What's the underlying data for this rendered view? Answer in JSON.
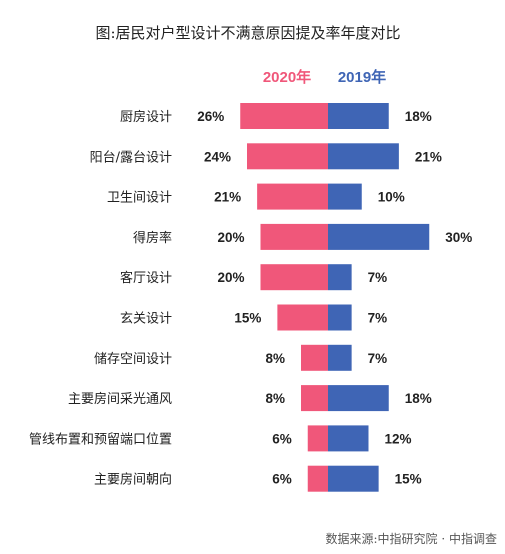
{
  "chart_data": {
    "type": "bar",
    "title": "图:居民对户型设计不满意原因提及率年度对比",
    "categories": [
      "厨房设计",
      "阳台/露台设计",
      "卫生间设计",
      "得房率",
      "客厅设计",
      "玄关设计",
      "储存空间设计",
      "主要房间采光通风",
      "管线布置和预留端口位置",
      "主要房间朝向"
    ],
    "series": [
      {
        "name": "2020年",
        "color": "#f0577a",
        "values": [
          26,
          24,
          21,
          20,
          20,
          15,
          8,
          8,
          6,
          6
        ],
        "labels": [
          "26%",
          "24%",
          "21%",
          "20%",
          "20%",
          "15%",
          "8%",
          "8%",
          "6%",
          "6%"
        ]
      },
      {
        "name": "2019年",
        "color": "#3f65b5",
        "values": [
          18,
          21,
          10,
          30,
          7,
          7,
          7,
          18,
          12,
          15
        ],
        "labels": [
          "18%",
          "21%",
          "10%",
          "30%",
          "7%",
          "7%",
          "7%",
          "18%",
          "12%",
          "15%"
        ]
      }
    ],
    "legend_position": "top",
    "grid": false,
    "source": "数据来源:中指研究院 · 中指调查"
  }
}
